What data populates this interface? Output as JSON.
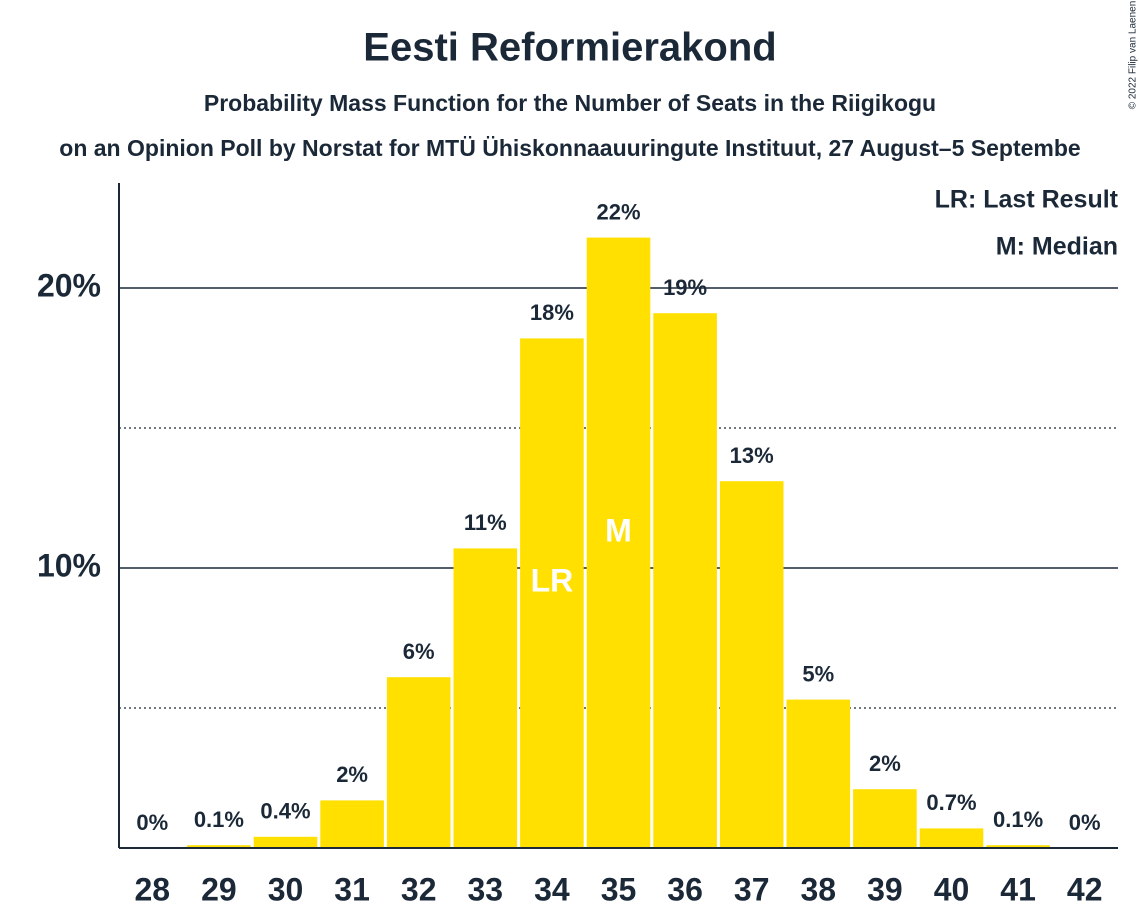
{
  "chart_data": {
    "type": "bar",
    "title": "Eesti Reformierakond",
    "subtitle": "Probability Mass Function for the Number of Seats in the Riigikogu",
    "caption": "on an Opinion Poll by Norstat for MTÜ Ühiskonnaauuringute Instituut, 27 August–5 Septembe",
    "copyright": "© 2022 Filip van Laenen",
    "categories": [
      "28",
      "29",
      "30",
      "31",
      "32",
      "33",
      "34",
      "35",
      "36",
      "37",
      "38",
      "39",
      "40",
      "41",
      "42"
    ],
    "values": [
      0,
      0.1,
      0.4,
      1.7,
      6.1,
      10.7,
      18.2,
      21.8,
      19.1,
      13.1,
      5.3,
      2.1,
      0.7,
      0.1,
      0
    ],
    "value_labels": [
      "0%",
      "0.1%",
      "0.4%",
      "2%",
      "6%",
      "11%",
      "18%",
      "22%",
      "19%",
      "13%",
      "5%",
      "2%",
      "0.7%",
      "0.1%",
      "0%"
    ],
    "color": "#FFE000",
    "ylim": [
      0,
      23.75
    ],
    "yticks": [
      {
        "value": 10,
        "label": "10%"
      },
      {
        "value": 20,
        "label": "20%"
      }
    ],
    "minor_yticks": [
      5,
      15
    ],
    "grid": true,
    "bar_annotations": [
      {
        "category": "34",
        "label": "LR"
      },
      {
        "category": "35",
        "label": "M"
      }
    ],
    "legend": [
      "LR: Last Result",
      "M: Median"
    ],
    "legend_position": "top-right"
  }
}
